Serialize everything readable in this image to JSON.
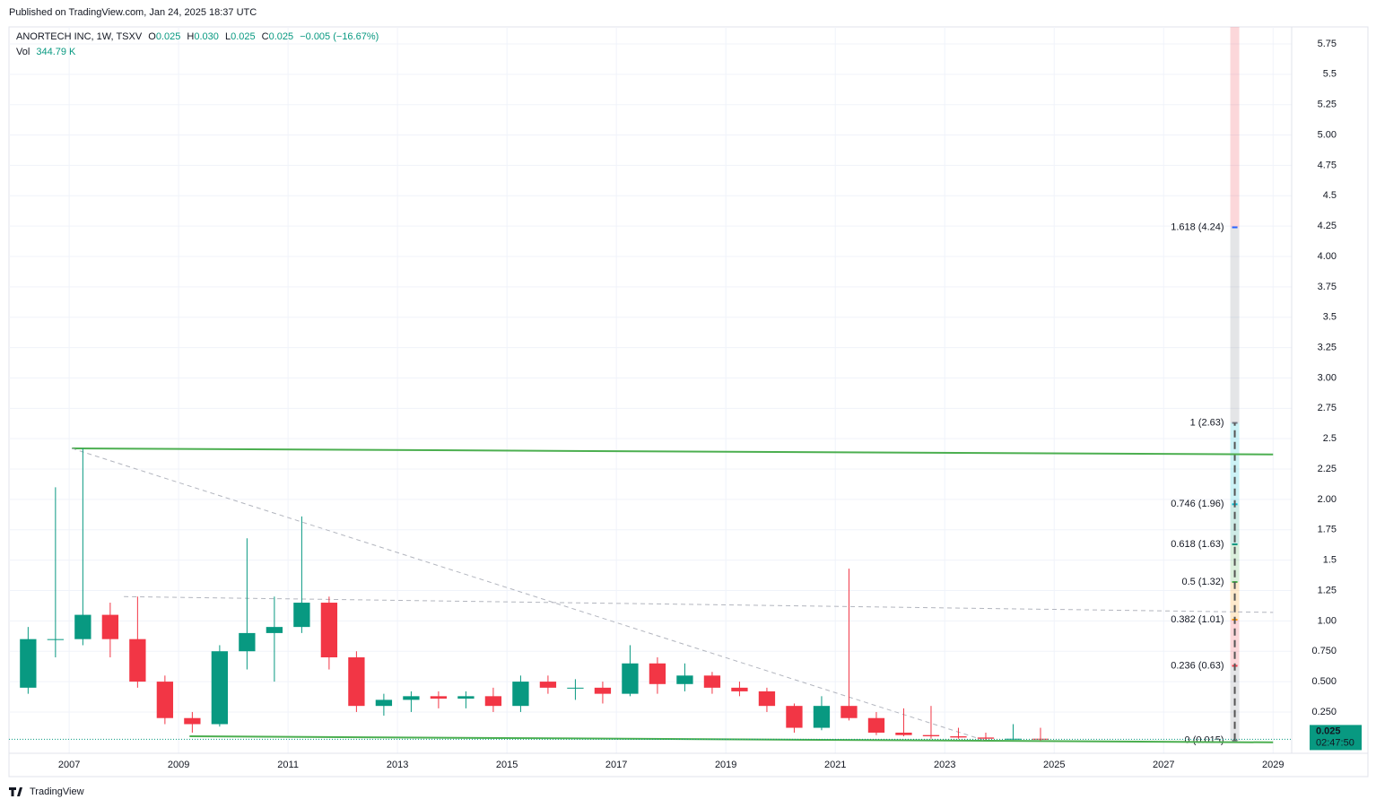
{
  "published": "Published on TradingView.com, Jan 24, 2025 18:37 UTC",
  "legend": {
    "symbol": "ANORTECH INC, 1W, TSXV",
    "o_key": "O",
    "o": "0.025",
    "h_key": "H",
    "h": "0.030",
    "l_key": "L",
    "l": "0.025",
    "c_key": "C",
    "c": "0.025",
    "change": "−0.005 (−16.67%)",
    "vol_key": "Vol",
    "vol": "344.79 K"
  },
  "last_price": {
    "price": "0.025",
    "countdown": "02:47:50"
  },
  "brand": "TradingView",
  "chart_data": {
    "type": "candlestick",
    "x": [
      2006.0,
      2006.5,
      2007.0,
      2007.5,
      2008.0,
      2008.5,
      2009.0,
      2009.5,
      2010.0,
      2010.5,
      2011.0,
      2011.5,
      2012.0,
      2012.5,
      2013.0,
      2013.5,
      2014.0,
      2014.5,
      2015.0,
      2015.5,
      2016.0,
      2016.5,
      2017.0,
      2017.5,
      2018.0,
      2018.5,
      2019.0,
      2019.5,
      2020.0,
      2020.5,
      2021.0,
      2021.5,
      2022.0,
      2022.5,
      2023.0,
      2023.5,
      2024.0,
      2024.5
    ],
    "open": [
      0.45,
      0.85,
      0.85,
      1.05,
      0.85,
      0.5,
      0.2,
      0.15,
      0.75,
      0.9,
      0.95,
      1.15,
      0.7,
      0.3,
      0.35,
      0.38,
      0.36,
      0.38,
      0.3,
      0.5,
      0.45,
      0.45,
      0.4,
      0.65,
      0.48,
      0.55,
      0.45,
      0.42,
      0.3,
      0.12,
      0.3,
      0.2,
      0.08,
      0.06,
      0.05,
      0.04,
      0.03,
      0.03
    ],
    "high": [
      0.95,
      2.1,
      2.42,
      1.15,
      1.2,
      0.55,
      0.25,
      0.8,
      1.68,
      1.2,
      1.86,
      1.2,
      0.75,
      0.4,
      0.42,
      0.42,
      0.42,
      0.45,
      0.55,
      0.55,
      0.52,
      0.5,
      0.8,
      0.7,
      0.65,
      0.58,
      0.5,
      0.45,
      0.32,
      0.38,
      1.43,
      0.25,
      0.28,
      0.3,
      0.12,
      0.08,
      0.15,
      0.12
    ],
    "low": [
      0.4,
      0.7,
      0.8,
      0.7,
      0.45,
      0.15,
      0.08,
      0.13,
      0.6,
      0.5,
      0.9,
      0.6,
      0.25,
      0.22,
      0.25,
      0.28,
      0.28,
      0.25,
      0.25,
      0.4,
      0.35,
      0.32,
      0.38,
      0.4,
      0.42,
      0.4,
      0.38,
      0.25,
      0.08,
      0.1,
      0.18,
      0.06,
      0.05,
      0.03,
      0.03,
      0.02,
      0.02,
      0.015
    ],
    "close": [
      0.85,
      0.85,
      1.05,
      0.85,
      0.5,
      0.2,
      0.15,
      0.75,
      0.9,
      0.95,
      1.15,
      0.7,
      0.3,
      0.35,
      0.38,
      0.36,
      0.38,
      0.3,
      0.5,
      0.45,
      0.45,
      0.4,
      0.65,
      0.48,
      0.55,
      0.45,
      0.42,
      0.3,
      0.12,
      0.3,
      0.2,
      0.08,
      0.06,
      0.05,
      0.04,
      0.03,
      0.03,
      0.025
    ],
    "up_color": "#089981",
    "down_color": "#f23645",
    "xlim": [
      2005.9,
      2029.34
    ],
    "xticks": [
      2007,
      2009,
      2011,
      2013,
      2015,
      2017,
      2019,
      2021,
      2023,
      2025,
      2027,
      2029
    ],
    "ylim": [
      -0.09,
      5.89
    ],
    "yticks": [
      {
        "value": 0.25,
        "label": "0.250"
      },
      {
        "value": 0.5,
        "label": "0.500"
      },
      {
        "value": 0.75,
        "label": "0.750"
      },
      {
        "value": 1,
        "label": "1.00"
      },
      1.25,
      1.5,
      1.75,
      {
        "value": 2,
        "label": "2.00"
      },
      2.25,
      2.5,
      2.75,
      {
        "value": 3,
        "label": "3.00"
      },
      3.25,
      3.5,
      3.75,
      {
        "value": 4,
        "label": "4.00"
      },
      4.25,
      4.5,
      4.75,
      {
        "value": 5,
        "label": "5.00"
      },
      5.25,
      5.5,
      5.75
    ],
    "grid": true,
    "last_value": 0.025,
    "last_color": "#089981",
    "trend_lines": [
      {
        "x": [
          2007.05,
          2029.0
        ],
        "y": [
          2.42,
          2.37
        ],
        "color": "#4caf50",
        "style": "solid"
      },
      {
        "x": [
          2009.2,
          2029.0
        ],
        "y": [
          0.05,
          0.0
        ],
        "color": "#4caf50",
        "style": "solid"
      },
      {
        "x": [
          2007.05,
          2023.7
        ],
        "y": [
          2.42,
          0.02
        ],
        "color": "#b2b5be",
        "style": "dashed"
      },
      {
        "x": [
          2008.0,
          2029.0
        ],
        "y": [
          1.2,
          1.07
        ],
        "color": "#b2b5be",
        "style": "dashed"
      }
    ],
    "fib_x": 2028.3,
    "fib_levels": [
      {
        "value": 0.015,
        "label": "0 (0.015)",
        "color": "#787b86"
      },
      {
        "value": 0.63,
        "label": "0.236 (0.63)",
        "color": "#f23645"
      },
      {
        "value": 1.01,
        "label": "0.382 (1.01)",
        "color": "#ff9800"
      },
      {
        "value": 1.32,
        "label": "0.5 (1.32)",
        "color": "#4caf50"
      },
      {
        "value": 1.63,
        "label": "0.618 (1.63)",
        "color": "#089981"
      },
      {
        "value": 1.96,
        "label": "0.746 (1.96)",
        "color": "#00bcd4"
      },
      {
        "value": 2.63,
        "label": "1 (2.63)",
        "color": "#787b86"
      },
      {
        "value": 4.24,
        "label": "1.618 (4.24)",
        "color": "#2962ff"
      }
    ],
    "fib_top_color": "#f23645"
  }
}
